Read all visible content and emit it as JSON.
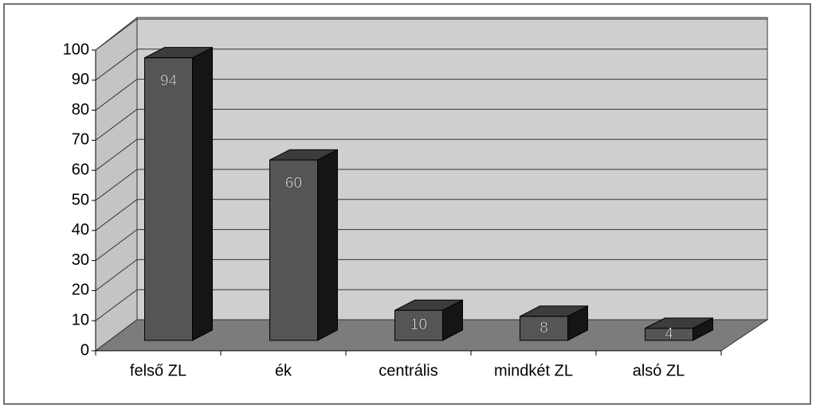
{
  "chart_data": {
    "type": "bar3d",
    "categories": [
      "felső ZL",
      "ék",
      "centrális",
      "mindkét ZL",
      "alsó ZL"
    ],
    "values": [
      94,
      60,
      10,
      8,
      4
    ],
    "color": "#555555",
    "ylim": [
      0,
      100
    ],
    "yticks": [
      0,
      10,
      20,
      30,
      40,
      50,
      60,
      70,
      80,
      90,
      100
    ],
    "grid": true,
    "data_labels": true
  }
}
